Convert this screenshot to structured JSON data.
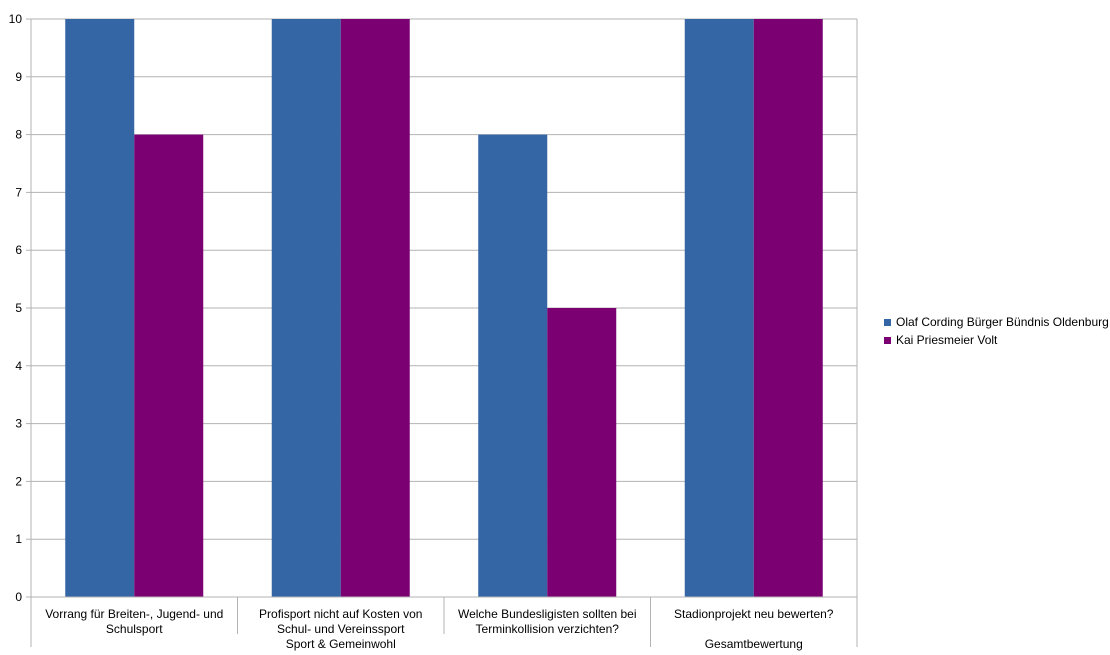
{
  "chart_data": {
    "type": "bar",
    "categories": [
      [
        "Vorrang für Breiten-, Jugend- und",
        "Schulsport"
      ],
      [
        "Profisport nicht auf Kosten von",
        "Schul- und Vereinssport"
      ],
      [
        "Welche Bundesligisten sollten bei",
        "Terminkollision verzichten?"
      ],
      [
        "Stadionprojekt neu bewerten?"
      ]
    ],
    "groups": [
      {
        "label": "Sport & Gemeinwohl",
        "categories": [
          0,
          1,
          2
        ]
      },
      {
        "label": "Gesamtbewertung",
        "categories": [
          3
        ]
      }
    ],
    "series": [
      {
        "name": "Olaf Cording Bürger Bündnis Oldenburg",
        "color": "#3465a4",
        "values": [
          10,
          10,
          8,
          10
        ]
      },
      {
        "name": "Kai Priesmeier Volt",
        "color": "#7b0072",
        "values": [
          8,
          10,
          5,
          10
        ]
      }
    ],
    "ylim": [
      0,
      10
    ],
    "yticks": [
      0,
      1,
      2,
      3,
      4,
      5,
      6,
      7,
      8,
      9,
      10
    ],
    "grid": true,
    "legend": "right"
  }
}
